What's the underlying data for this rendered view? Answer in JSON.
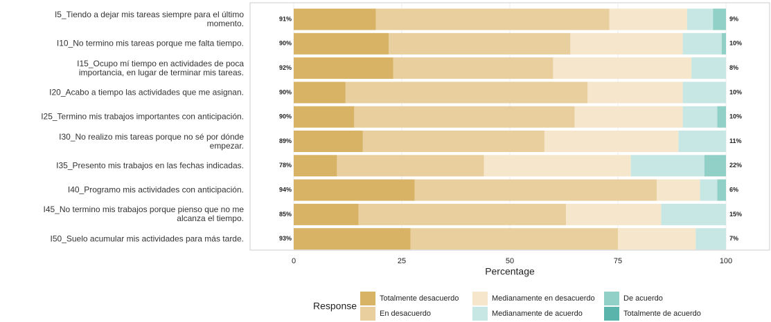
{
  "chart_data": {
    "type": "stacked_bar_horizontal",
    "xlabel": "Percentage",
    "legend_title": "Response",
    "categories": [
      "I5_Tiendo a dejar mis tareas siempre para el último momento.",
      "I10_No termino mis tareas porque me falta tiempo.",
      "I15_Ocupo mí tiempo en actividades de poca importancia, en lugar de terminar mis tareas.",
      "I20_Acabo a tiempo las actividades que me asignan.",
      "I25_Termino mis trabajos importantes con anticipación.",
      "I30_No realizo mis tareas porque no sé por dónde empezar.",
      "I35_Presento mis trabajos en las fechas indicadas.",
      "I40_Programo mis actividades con anticipación.",
      "I45_No termino mis trabajos porque pienso que no me alcanza el tiempo.",
      "I50_Suelo acumular mis actividades para más tarde."
    ],
    "series": [
      {
        "name": "Totalmente desacuerdo",
        "color": "#d8b365",
        "values": [
          19,
          22,
          23,
          12,
          14,
          16,
          10,
          28,
          15,
          27
        ]
      },
      {
        "name": "En desacuerdo",
        "color": "#e8cf9d",
        "values": [
          54,
          42,
          37,
          56,
          51,
          42,
          34,
          56,
          48,
          48
        ]
      },
      {
        "name": "Medianamente en desacuerdo",
        "color": "#f5e6cc",
        "values": [
          18,
          26,
          32,
          22,
          25,
          31,
          34,
          10,
          22,
          18
        ]
      },
      {
        "name": "Medianamente de acuerdo",
        "color": "#c7e7e4",
        "values": [
          6,
          9,
          8,
          10,
          8,
          11,
          17,
          4,
          15,
          7
        ]
      },
      {
        "name": "De acuerdo",
        "color": "#91d0c6",
        "values": [
          3,
          1,
          0,
          0,
          2,
          0,
          5,
          2,
          0,
          0
        ]
      },
      {
        "name": "Totalmente de acuerdo",
        "color": "#5ab4ac",
        "values": [
          0,
          0,
          0,
          0,
          0,
          0,
          0,
          0,
          0,
          0
        ]
      }
    ],
    "left_labels": [
      "91%",
      "90%",
      "92%",
      "90%",
      "90%",
      "89%",
      "78%",
      "94%",
      "85%",
      "93%"
    ],
    "right_labels": [
      "9%",
      "10%",
      "8%",
      "10%",
      "10%",
      "11%",
      "22%",
      "6%",
      "15%",
      "7%"
    ],
    "xlim": [
      0,
      100
    ],
    "xticks": [
      0,
      25,
      50,
      75,
      100
    ],
    "grid": true
  }
}
